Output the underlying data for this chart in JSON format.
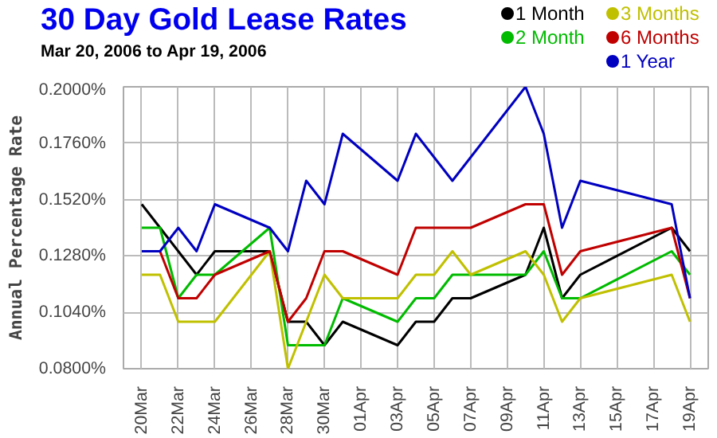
{
  "chart_data": {
    "type": "line",
    "title": "30 Day Gold Lease Rates",
    "subtitle": "Mar 20, 2006 to Apr 19, 2006",
    "ylabel": "Annual Percentage Rate",
    "x": [
      "2006-03-20",
      "2006-03-21",
      "2006-03-22",
      "2006-03-23",
      "2006-03-24",
      "2006-03-27",
      "2006-03-28",
      "2006-03-29",
      "2006-03-30",
      "2006-03-31",
      "2006-04-03",
      "2006-04-04",
      "2006-04-05",
      "2006-04-06",
      "2006-04-07",
      "2006-04-10",
      "2006-04-11",
      "2006-04-12",
      "2006-04-13",
      "2006-04-18",
      "2006-04-19"
    ],
    "series": [
      {
        "name": "1 Month",
        "color": "#000000",
        "values": [
          0.15,
          0.14,
          0.13,
          0.12,
          0.13,
          0.13,
          0.1,
          0.1,
          0.09,
          0.1,
          0.09,
          0.1,
          0.1,
          0.11,
          0.11,
          0.12,
          0.14,
          0.11,
          0.12,
          0.14,
          0.13
        ]
      },
      {
        "name": "2 Month",
        "color": "#00bb00",
        "values": [
          0.14,
          0.14,
          0.11,
          0.12,
          0.12,
          0.14,
          0.09,
          0.09,
          0.09,
          0.11,
          0.1,
          0.11,
          0.11,
          0.12,
          0.12,
          0.12,
          0.13,
          0.11,
          0.11,
          0.13,
          0.12
        ]
      },
      {
        "name": "3 Months",
        "color": "#c0c000",
        "values": [
          0.12,
          0.12,
          0.1,
          0.1,
          0.1,
          0.13,
          0.08,
          0.1,
          0.12,
          0.11,
          0.11,
          0.12,
          0.12,
          0.13,
          0.12,
          0.13,
          0.12,
          0.1,
          0.11,
          0.12,
          0.1
        ]
      },
      {
        "name": "6 Months",
        "color": "#c00000",
        "values": [
          null,
          0.13,
          0.11,
          0.11,
          0.12,
          0.13,
          0.1,
          0.11,
          0.13,
          0.13,
          0.12,
          0.14,
          0.14,
          0.14,
          0.14,
          0.15,
          0.15,
          0.12,
          0.13,
          0.14,
          0.11
        ]
      },
      {
        "name": "1 Year",
        "color": "#0000c0",
        "values": [
          0.13,
          0.13,
          0.14,
          0.13,
          0.15,
          0.14,
          0.13,
          0.16,
          0.15,
          0.18,
          0.16,
          0.18,
          0.17,
          0.16,
          0.17,
          0.2,
          0.18,
          0.14,
          0.16,
          0.15,
          0.11
        ]
      }
    ],
    "xlim": [
      "2006-03-19",
      "2006-04-20"
    ],
    "xticks": [
      {
        "value": "2006-03-20",
        "label": "20Mar"
      },
      {
        "value": "2006-03-22",
        "label": "22Mar"
      },
      {
        "value": "2006-03-24",
        "label": "24Mar"
      },
      {
        "value": "2006-03-26",
        "label": "26Mar"
      },
      {
        "value": "2006-03-28",
        "label": "28Mar"
      },
      {
        "value": "2006-03-30",
        "label": "30Mar"
      },
      {
        "value": "2006-04-01",
        "label": "01Apr"
      },
      {
        "value": "2006-04-03",
        "label": "03Apr"
      },
      {
        "value": "2006-04-05",
        "label": "05Apr"
      },
      {
        "value": "2006-04-07",
        "label": "07Apr"
      },
      {
        "value": "2006-04-09",
        "label": "09Apr"
      },
      {
        "value": "2006-04-11",
        "label": "11Apr"
      },
      {
        "value": "2006-04-13",
        "label": "13Apr"
      },
      {
        "value": "2006-04-15",
        "label": "15Apr"
      },
      {
        "value": "2006-04-17",
        "label": "17Apr"
      },
      {
        "value": "2006-04-19",
        "label": "19Apr"
      }
    ],
    "ylim": [
      0.08,
      0.2
    ],
    "yticks": [
      {
        "value": 0.08,
        "label": "0.0800%"
      },
      {
        "value": 0.104,
        "label": "0.1040%"
      },
      {
        "value": 0.128,
        "label": "0.1280%"
      },
      {
        "value": 0.152,
        "label": "0.1520%"
      },
      {
        "value": 0.176,
        "label": "0.1760%"
      },
      {
        "value": 0.2,
        "label": "0.2000%"
      }
    ],
    "grid": true,
    "legend": "top right",
    "marker": "none",
    "line_style": "solid"
  }
}
